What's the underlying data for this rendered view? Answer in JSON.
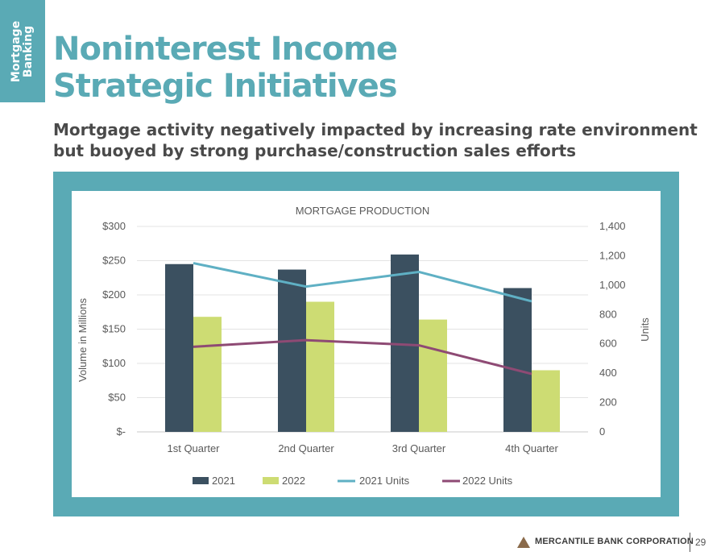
{
  "colors": {
    "accent": "#5aaab5",
    "heading_text": "#4a4a4a",
    "logo": "#8a6a4a"
  },
  "side_tab": {
    "text": "Mortgage\nBanking"
  },
  "title": {
    "line1": "Noninterest Income",
    "line2": "Strategic Initiatives"
  },
  "subtitle": {
    "line1": "Mortgage activity negatively impacted by increasing rate environment",
    "line2": "but buoyed by strong purchase/construction sales efforts"
  },
  "chart_data": {
    "type": "bar",
    "title": "MORTGAGE PRODUCTION",
    "categories": [
      "1st Quarter",
      "2nd Quarter",
      "3rd Quarter",
      "4th Quarter"
    ],
    "ylabel": "Volume in Millions",
    "y2label": "Units",
    "ylim": [
      0,
      300
    ],
    "y2lim": [
      0,
      1400
    ],
    "yticks": [
      "$-",
      "$50",
      "$100",
      "$150",
      "$200",
      "$250",
      "$300"
    ],
    "y2ticks": [
      "0",
      "200",
      "400",
      "600",
      "800",
      "1,000",
      "1,200",
      "1,400"
    ],
    "grid": true,
    "legend_position": "bottom",
    "series": [
      {
        "name": "2021",
        "type": "bar",
        "axis": "left",
        "color": "#3b5060",
        "values": [
          245,
          237,
          259,
          210
        ]
      },
      {
        "name": "2022",
        "type": "bar",
        "axis": "left",
        "color": "#cddc73",
        "values": [
          168,
          190,
          164,
          90
        ]
      },
      {
        "name": "2021 Units",
        "type": "line",
        "axis": "right",
        "color": "#5fb0c4",
        "values": [
          1150,
          990,
          1090,
          890
        ]
      },
      {
        "name": "2022 Units",
        "type": "line",
        "axis": "right",
        "color": "#8e4a74",
        "values": [
          580,
          625,
          590,
          395
        ]
      }
    ]
  },
  "footer": {
    "company": "MERCANTILE BANK CORPORATION",
    "page_number": "29"
  }
}
